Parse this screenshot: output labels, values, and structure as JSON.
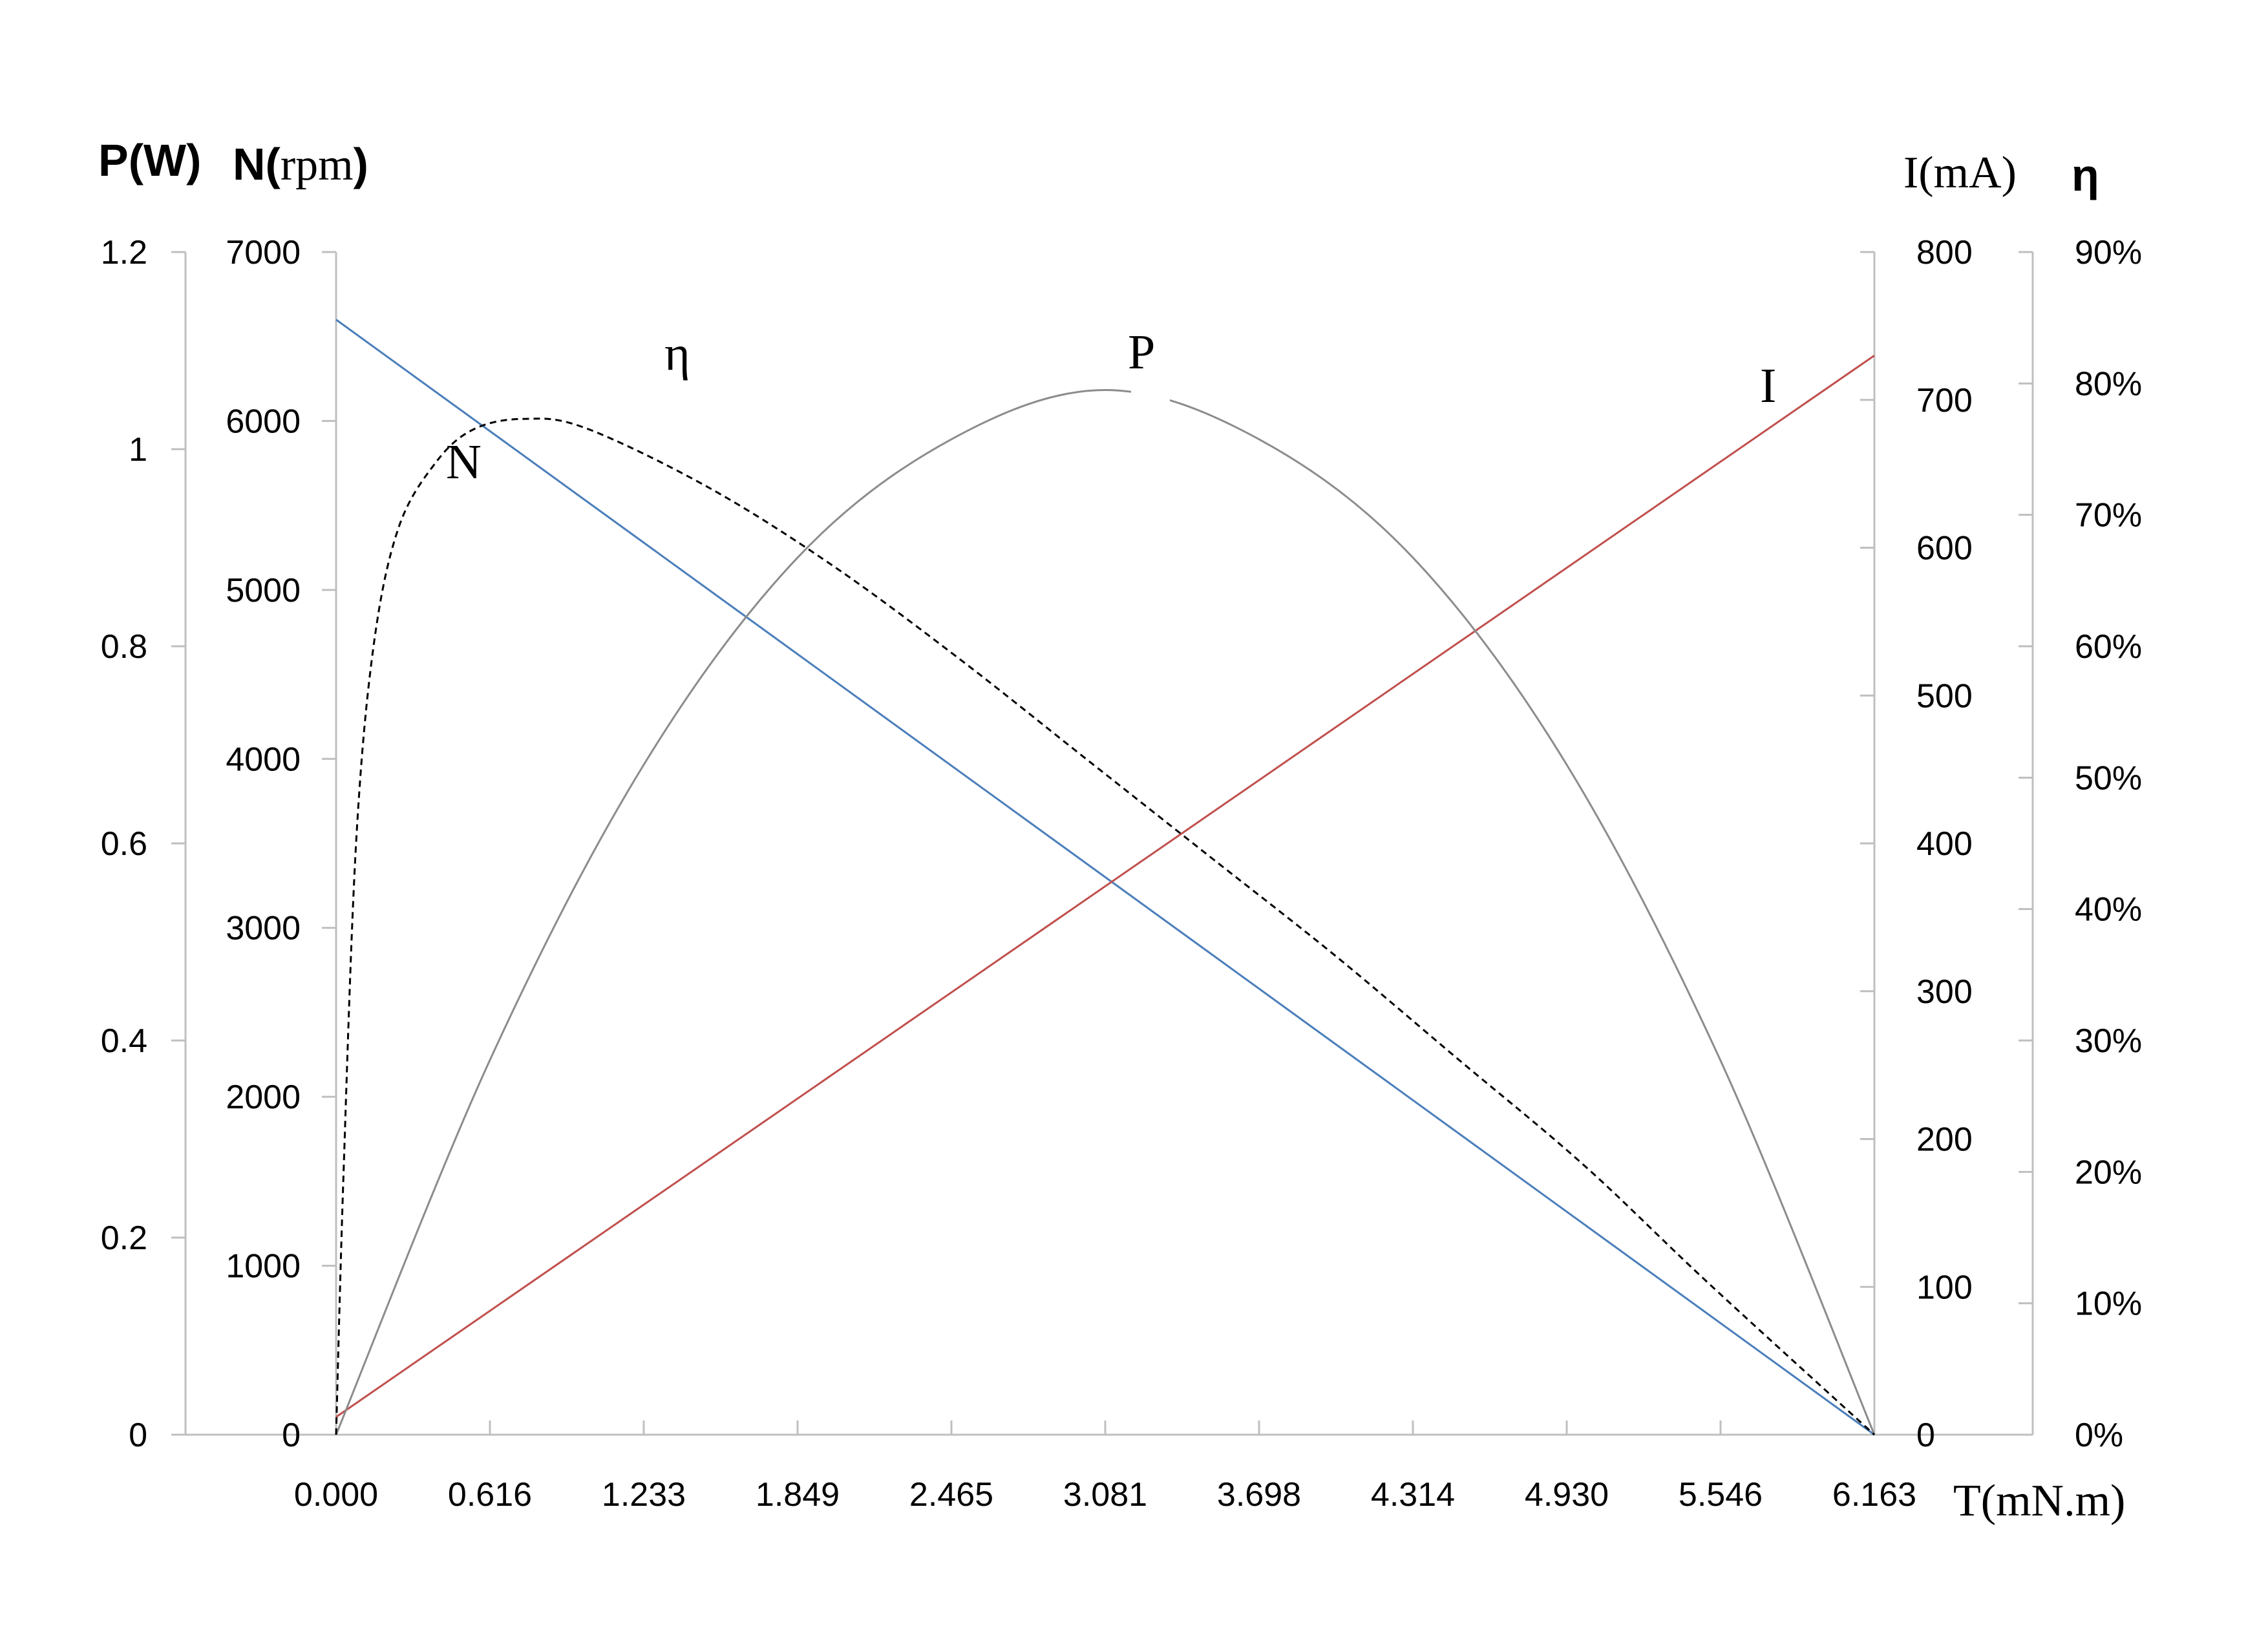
{
  "chart_data": {
    "type": "line",
    "x": {
      "label": "T(mN.m)",
      "ticks": [
        "0.000",
        "0.616",
        "1.233",
        "1.849",
        "2.465",
        "3.081",
        "3.698",
        "4.314",
        "4.930",
        "5.546",
        "6.163"
      ],
      "range": [
        0,
        6.163
      ]
    },
    "axes": {
      "power": {
        "title_part1": "P(W)",
        "ticks": [
          "0",
          "0.2",
          "0.4",
          "0.6",
          "0.8",
          "1",
          "1.2"
        ],
        "range": [
          0,
          1.2
        ]
      },
      "speed": {
        "title_part1": "N(",
        "title_part2": "rpm",
        "title_part3": ")",
        "ticks": [
          "0",
          "1000",
          "2000",
          "3000",
          "4000",
          "5000",
          "6000",
          "7000"
        ],
        "range": [
          0,
          7000
        ]
      },
      "current": {
        "title": "I(mA)",
        "ticks": [
          "0",
          "100",
          "200",
          "300",
          "400",
          "500",
          "600",
          "700",
          "800"
        ],
        "range": [
          0,
          800
        ]
      },
      "efficiency": {
        "title": "η",
        "ticks": [
          "0%",
          "10%",
          "20%",
          "30%",
          "40%",
          "50%",
          "60%",
          "70%",
          "80%",
          "90%"
        ],
        "range": [
          0,
          90
        ]
      }
    },
    "series": [
      {
        "name": "N",
        "axis": "speed",
        "color": "#4a7ebb",
        "style": "solid",
        "points": [
          [
            0,
            6600
          ],
          [
            6.163,
            0
          ]
        ]
      },
      {
        "name": "I",
        "axis": "current",
        "color": "#c0504d",
        "style": "solid",
        "points": [
          [
            0,
            12
          ],
          [
            6.163,
            730
          ]
        ]
      },
      {
        "name": "P",
        "axis": "power",
        "color": "#8c8c8c",
        "style": "solid",
        "points": [
          [
            0,
            0
          ],
          [
            0.616,
            0.38
          ],
          [
            1.233,
            0.68
          ],
          [
            1.849,
            0.89
          ],
          [
            2.465,
            1.01
          ],
          [
            3.081,
            1.06
          ],
          [
            3.698,
            1.01
          ],
          [
            4.314,
            0.89
          ],
          [
            4.93,
            0.68
          ],
          [
            5.546,
            0.38
          ],
          [
            6.163,
            0
          ]
        ]
      },
      {
        "name": "η",
        "axis": "efficiency",
        "color": "#000000",
        "style": "dashed",
        "points": [
          [
            0,
            0
          ],
          [
            0.03,
            20
          ],
          [
            0.08,
            45
          ],
          [
            0.15,
            60
          ],
          [
            0.25,
            69
          ],
          [
            0.4,
            74
          ],
          [
            0.55,
            76.5
          ],
          [
            0.75,
            77.3
          ],
          [
            1.0,
            76.6
          ],
          [
            1.5,
            72
          ],
          [
            2.0,
            66
          ],
          [
            2.5,
            59
          ],
          [
            3.0,
            51.5
          ],
          [
            3.5,
            44
          ],
          [
            4.0,
            36.5
          ],
          [
            4.5,
            28.5
          ],
          [
            5.0,
            20.5
          ],
          [
            5.5,
            11.5
          ],
          [
            6.163,
            0
          ]
        ]
      }
    ],
    "curve_labels": [
      "η",
      "P",
      "I",
      "N"
    ]
  }
}
